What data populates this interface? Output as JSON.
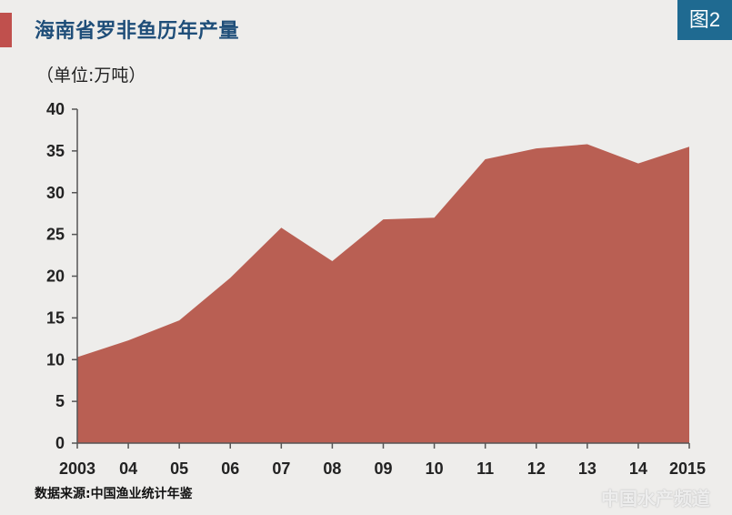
{
  "header": {
    "title": "海南省罗非鱼历年产量",
    "badge": "图2"
  },
  "unit_label": "（单位:万吨）",
  "source": "数据来源:中国渔业统计年鉴",
  "watermark": "中国水产频道",
  "colors": {
    "area_fill": "#b95f53",
    "accent": "#c0504d",
    "badge_bg": "#1f6a91",
    "title_color": "#1f4e79",
    "background": "#eeedeb"
  },
  "chart_data": {
    "type": "area",
    "title": "海南省罗非鱼历年产量",
    "ylabel": "（单位:万吨）",
    "xlabel": "",
    "categories": [
      "2003",
      "04",
      "05",
      "06",
      "07",
      "08",
      "09",
      "10",
      "11",
      "12",
      "13",
      "14",
      "2015"
    ],
    "series": [
      {
        "values": [
          10.3,
          12.3,
          14.7,
          19.8,
          25.8,
          21.8,
          26.8,
          27.0,
          34.0,
          35.3,
          35.8,
          33.5,
          35.5
        ]
      }
    ],
    "ylim": [
      0,
      40
    ],
    "yticks": [
      "0",
      "5",
      "10",
      "15",
      "20",
      "25",
      "30",
      "35",
      "40"
    ],
    "grid": false,
    "legend": "none"
  }
}
